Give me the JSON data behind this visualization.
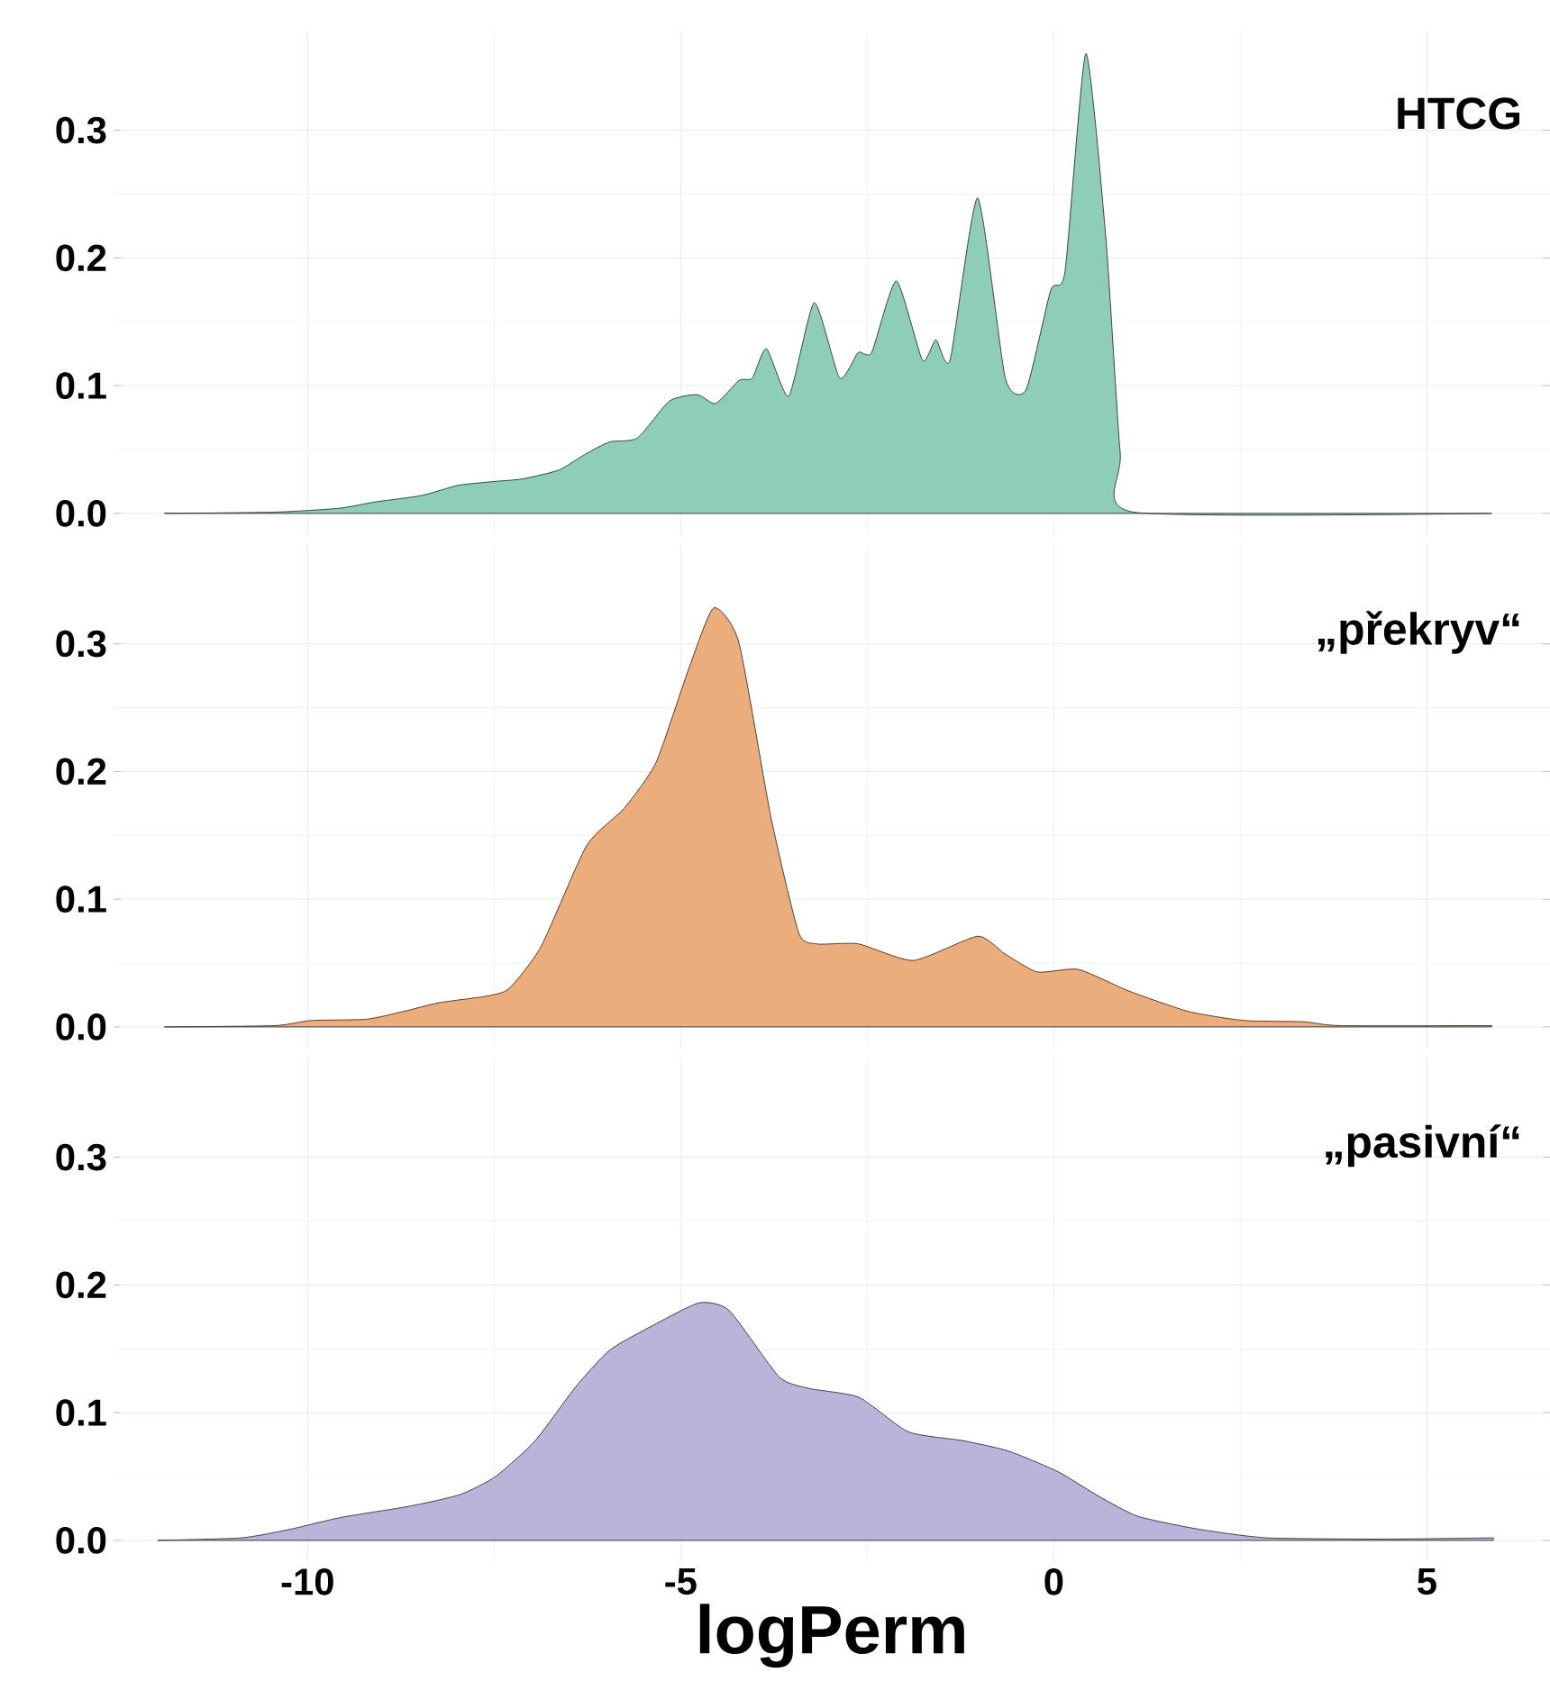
{
  "chart_data": [
    {
      "type": "area",
      "annotations": [
        "HTCG"
      ],
      "tick_labels": "y",
      "grid": true,
      "xlim": [
        -12.6,
        6.65
      ],
      "ylim": [
        -0.017,
        0.378
      ],
      "xticks": [
        -10,
        -5,
        0,
        5
      ],
      "yticks": [
        {
          "value": 0,
          "label": "0.0"
        },
        {
          "value": 0.1,
          "label": "0.1"
        },
        {
          "value": 0.2,
          "label": "0.2"
        },
        {
          "value": 0.3,
          "label": "0.3"
        }
      ],
      "series": [
        {
          "color": "#8ecdb8",
          "x": [
            -11.92,
            -10.44,
            -9.58,
            -9.09,
            -8.47,
            -7.98,
            -7.49,
            -7.12,
            -6.63,
            -6.26,
            -5.95,
            -5.58,
            -5.15,
            -4.78,
            -4.53,
            -4.22,
            -4.04,
            -3.85,
            -3.55,
            -3.21,
            -2.87,
            -2.62,
            -2.44,
            -2.11,
            -1.76,
            -1.58,
            -1.39,
            -1.02,
            -0.65,
            -0.37,
            -0.04,
            0.15,
            0.43,
            0.7,
            0.89,
            1.07,
            5.87
          ],
          "values": [
            0,
            0.001,
            0.004,
            0.009,
            0.014,
            0.022,
            0.025,
            0.027,
            0.034,
            0.047,
            0.056,
            0.059,
            0.088,
            0.093,
            0.086,
            0.104,
            0.106,
            0.129,
            0.092,
            0.165,
            0.106,
            0.126,
            0.126,
            0.182,
            0.12,
            0.136,
            0.12,
            0.247,
            0.106,
            0.097,
            0.175,
            0.189,
            0.36,
            0.214,
            0.048,
            0.001,
            0
          ]
        }
      ]
    },
    {
      "type": "area",
      "annotations": [
        "„překryv“"
      ],
      "tick_labels": "y",
      "grid": true,
      "xlim": [
        -12.6,
        6.65
      ],
      "ylim": [
        -0.017,
        0.378
      ],
      "xticks": [
        -10,
        -5,
        0,
        5
      ],
      "yticks": [
        {
          "value": 0,
          "label": "0.0"
        },
        {
          "value": 0.1,
          "label": "0.1"
        },
        {
          "value": 0.2,
          "label": "0.2"
        },
        {
          "value": 0.3,
          "label": "0.3"
        }
      ],
      "series": [
        {
          "color": "#ecad7d",
          "x": [
            -11.92,
            -10.44,
            -9.95,
            -9.21,
            -8.72,
            -8.23,
            -7.61,
            -7.3,
            -6.87,
            -6.26,
            -5.76,
            -5.33,
            -4.9,
            -4.56,
            -4.22,
            -3.79,
            -3.42,
            -3.18,
            -2.62,
            -1.88,
            -1.02,
            -0.65,
            -0.22,
            0.33,
            1.01,
            1.81,
            2.55,
            3.35,
            3.84,
            5.87
          ],
          "values": [
            0,
            0.001,
            0.005,
            0.006,
            0.012,
            0.019,
            0.024,
            0.03,
            0.063,
            0.142,
            0.171,
            0.207,
            0.279,
            0.328,
            0.301,
            0.164,
            0.074,
            0.065,
            0.065,
            0.052,
            0.071,
            0.057,
            0.043,
            0.045,
            0.028,
            0.012,
            0.005,
            0.004,
            0.001,
            0.001
          ]
        }
      ]
    },
    {
      "type": "area",
      "annotations": [
        "„pasivní“"
      ],
      "grid": true,
      "xlabel": "logPerm",
      "xlim": [
        -12.6,
        6.65
      ],
      "ylim": [
        -0.017,
        0.378
      ],
      "xticks": [
        -10,
        -5,
        0,
        5
      ],
      "yticks": [
        {
          "value": 0,
          "label": "0.0"
        },
        {
          "value": 0.1,
          "label": "0.1"
        },
        {
          "value": 0.2,
          "label": "0.2"
        },
        {
          "value": 0.3,
          "label": "0.3"
        }
      ],
      "series": [
        {
          "color": "#b8b5d8",
          "x": [
            -12.01,
            -10.88,
            -10.21,
            -9.55,
            -8.61,
            -7.95,
            -7.48,
            -6.95,
            -6.41,
            -5.95,
            -5.35,
            -4.75,
            -4.35,
            -3.68,
            -3.28,
            -2.61,
            -1.95,
            -1.21,
            -0.61,
            0.05,
            0.59,
            1.12,
            1.92,
            2.85,
            4.45,
            5.89
          ],
          "values": [
            0,
            0.002,
            0.009,
            0.018,
            0.027,
            0.036,
            0.05,
            0.078,
            0.12,
            0.149,
            0.169,
            0.186,
            0.18,
            0.128,
            0.119,
            0.112,
            0.085,
            0.078,
            0.07,
            0.054,
            0.035,
            0.019,
            0.009,
            0.002,
            0.001,
            0.002
          ]
        }
      ]
    }
  ]
}
